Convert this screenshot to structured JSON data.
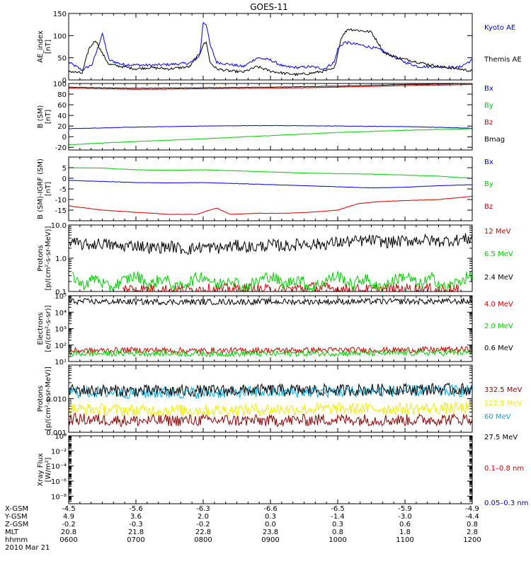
{
  "title": "GOES-11",
  "chart_data": [
    {
      "type": "line",
      "ylabel": [
        "AE_index",
        "[nT]"
      ],
      "ylim": [
        0,
        150
      ],
      "yscale": "linear",
      "yticks": [
        0,
        50,
        100,
        150
      ],
      "ytick_labels": [
        "0",
        "50",
        "100",
        "150"
      ],
      "series": [
        {
          "name": "Kyoto AE",
          "color": "#0000dd",
          "x": [
            6.0,
            6.2,
            6.35,
            6.45,
            6.5,
            6.6,
            6.8,
            7.0,
            7.2,
            7.5,
            7.8,
            7.95,
            8.0,
            8.05,
            8.1,
            8.2,
            8.4,
            8.6,
            8.8,
            9.0,
            9.2,
            9.4,
            9.6,
            9.8,
            9.95,
            10.0,
            10.1,
            10.3,
            10.6,
            10.8,
            11.0,
            11.2,
            11.5,
            11.8,
            12.0
          ],
          "y": [
            40,
            22,
            35,
            80,
            105,
            45,
            35,
            34,
            33,
            35,
            38,
            55,
            130,
            125,
            80,
            40,
            35,
            30,
            50,
            45,
            30,
            28,
            30,
            25,
            40,
            70,
            85,
            80,
            70,
            55,
            40,
            30,
            30,
            28,
            45
          ]
        },
        {
          "name": "Themis AE",
          "color": "#000000",
          "x": [
            6.0,
            6.2,
            6.3,
            6.4,
            6.5,
            6.6,
            6.8,
            7.0,
            7.2,
            7.5,
            7.8,
            7.95,
            8.0,
            8.05,
            8.1,
            8.2,
            8.4,
            8.6,
            8.8,
            9.0,
            9.2,
            9.4,
            9.6,
            9.8,
            9.95,
            10.05,
            10.15,
            10.3,
            10.5,
            10.7,
            10.9,
            11.2,
            11.5,
            11.8,
            12.0
          ],
          "y": [
            20,
            15,
            70,
            90,
            60,
            35,
            30,
            25,
            28,
            25,
            30,
            60,
            80,
            85,
            40,
            25,
            20,
            18,
            30,
            20,
            15,
            12,
            15,
            20,
            25,
            95,
            115,
            112,
            108,
            60,
            50,
            40,
            30,
            25,
            20
          ]
        }
      ]
    },
    {
      "type": "line",
      "ylabel": [
        "B (SM)",
        "[nT]"
      ],
      "ylim": [
        -25,
        100
      ],
      "yscale": "linear",
      "yticks": [
        -20,
        0,
        20,
        40,
        60,
        80,
        100
      ],
      "ytick_labels": [
        "-20",
        "0",
        "20",
        "40",
        "60",
        "80",
        "100"
      ],
      "series": [
        {
          "name": "Bx",
          "color": "#0000dd",
          "x": [
            6.0,
            7.0,
            8.0,
            9.0,
            10.0,
            11.0,
            12.0
          ],
          "y": [
            15,
            18,
            20,
            21,
            20,
            19,
            16
          ]
        },
        {
          "name": "By",
          "color": "#00cc00",
          "x": [
            6.0,
            7.0,
            8.0,
            9.0,
            10.0,
            11.0,
            12.0
          ],
          "y": [
            -15,
            -9,
            -4,
            2,
            8,
            12,
            15
          ]
        },
        {
          "name": "Bz",
          "color": "#cc0000",
          "x": [
            6.0,
            7.0,
            8.0,
            9.0,
            10.0,
            11.0,
            12.0
          ],
          "y": [
            91,
            89,
            90,
            91,
            93,
            96,
            98
          ]
        },
        {
          "name": "Bmag",
          "color": "#000000",
          "x": [
            6.0,
            7.0,
            8.0,
            9.0,
            10.0,
            11.0,
            12.0
          ],
          "y": [
            93,
            91,
            92,
            93,
            95,
            98,
            100
          ]
        }
      ]
    },
    {
      "type": "line",
      "ylabel": [
        "B (SM)-IGRF (SM)",
        "[nT]"
      ],
      "ylim": [
        -20,
        10
      ],
      "yscale": "linear",
      "yticks": [
        -15,
        -10,
        -5,
        0,
        5
      ],
      "ytick_labels": [
        "-15",
        "-10",
        "-5",
        "0",
        "5"
      ],
      "series": [
        {
          "name": "Bx",
          "color": "#0000dd",
          "x": [
            6.0,
            6.5,
            7.0,
            7.5,
            8.0,
            8.5,
            9.0,
            9.5,
            10.0,
            10.5,
            11.0,
            11.5,
            12.0
          ],
          "y": [
            -1,
            -1.5,
            -2,
            -2.2,
            -2,
            -2.5,
            -3,
            -3.5,
            -4,
            -4.5,
            -4.2,
            -3.5,
            -3
          ]
        },
        {
          "name": "By",
          "color": "#00cc00",
          "x": [
            6.0,
            6.5,
            7.0,
            7.5,
            8.0,
            8.5,
            9.0,
            9.5,
            10.0,
            10.5,
            11.0,
            11.5,
            12.0
          ],
          "y": [
            5,
            4.8,
            4,
            3.8,
            4,
            3.5,
            3,
            2.5,
            2.2,
            2,
            1.5,
            1,
            0
          ]
        },
        {
          "name": "Bz",
          "color": "#cc0000",
          "x": [
            6.0,
            6.5,
            7.0,
            7.5,
            7.9,
            8.2,
            8.4,
            8.8,
            9.2,
            9.6,
            10.0,
            10.3,
            10.6,
            11.0,
            11.5,
            12.0
          ],
          "y": [
            -13,
            -15,
            -16,
            -17,
            -17,
            -14,
            -17,
            -16.5,
            -16.5,
            -16,
            -15,
            -12,
            -11,
            -10.5,
            -10,
            -8.5
          ]
        }
      ]
    },
    {
      "type": "line",
      "ylabel": [
        "Protons",
        "[p/(cm²-s-sr-MeV)]"
      ],
      "ylim": [
        0.1,
        10.0
      ],
      "yscale": "log",
      "yticks": [
        0.1,
        1.0,
        10.0
      ],
      "ytick_labels": [
        "0.1",
        "1.0",
        "10.0"
      ],
      "series": [
        {
          "name": "12 MeV",
          "color": "#cc0000",
          "x": [
            6.8,
            7.6,
            8.4,
            9.1,
            9.6,
            10.3,
            11.3,
            11.8
          ],
          "y": [
            0.12,
            0.11,
            0.12,
            0.11,
            0.13,
            0.11,
            0.12,
            0.11
          ]
        },
        {
          "name": "6.5 MeV",
          "color": "#00cc00",
          "x": [
            6.05,
            6.2,
            6.4,
            6.6,
            6.8,
            7.0,
            7.2,
            7.4,
            7.6,
            7.8,
            8.0,
            8.2,
            8.4,
            8.6,
            8.8,
            9.0,
            9.2,
            9.4,
            9.6,
            9.8,
            10.0,
            10.2,
            10.4,
            10.6,
            10.8,
            11.0,
            11.2,
            11.4,
            11.6,
            11.8,
            12.0
          ],
          "y": [
            0.3,
            0.15,
            0.25,
            0.12,
            0.2,
            0.3,
            0.15,
            0.25,
            0.12,
            0.2,
            0.3,
            0.15,
            0.25,
            0.12,
            0.2,
            0.3,
            0.15,
            0.25,
            0.12,
            0.2,
            0.3,
            0.15,
            0.25,
            0.12,
            0.2,
            0.3,
            0.15,
            0.25,
            0.12,
            0.2,
            0.3
          ]
        },
        {
          "name": "2.4 MeV",
          "color": "#000000",
          "x": [
            6.0,
            6.25,
            6.5,
            6.75,
            7.0,
            7.25,
            7.5,
            7.75,
            8.0,
            8.25,
            8.5,
            8.75,
            9.0,
            9.25,
            9.5,
            9.75,
            10.0,
            10.25,
            10.5,
            10.75,
            11.0,
            11.25,
            11.5,
            11.75,
            12.0
          ],
          "y": [
            3.0,
            2.5,
            2.8,
            2.2,
            2.5,
            2.0,
            2.3,
            1.8,
            2.2,
            2.0,
            2.4,
            2.1,
            2.5,
            2.3,
            2.8,
            2.6,
            3.0,
            3.2,
            3.5,
            3.0,
            3.3,
            3.6,
            3.2,
            3.5,
            4.0
          ]
        }
      ]
    },
    {
      "type": "line",
      "ylabel": [
        "Electrons",
        "[e/(cm²-s-sr)]"
      ],
      "ylim": [
        10,
        100000
      ],
      "yscale": "log",
      "yticks": [
        10,
        100,
        1000,
        10000,
        100000
      ],
      "ytick_labels": [
        "10¹",
        "10²",
        "10³",
        "10⁴",
        "10⁵"
      ],
      "series": [
        {
          "name": "4.0 MeV",
          "color": "#cc0000",
          "x": [
            6.0,
            7.0,
            8.0,
            9.0,
            10.0,
            11.0,
            12.0
          ],
          "y": [
            45,
            50,
            45,
            48,
            50,
            50,
            55
          ]
        },
        {
          "name": "2.0 MeV",
          "color": "#00cc00",
          "x": [
            6.0,
            7.0,
            8.0,
            9.0,
            10.0,
            11.0,
            12.0
          ],
          "y": [
            30,
            32,
            30,
            30,
            32,
            33,
            35
          ]
        },
        {
          "name": "0.6 MeV",
          "color": "#000000",
          "x": [
            6.0,
            7.0,
            8.0,
            9.0,
            10.0,
            11.0,
            12.0
          ],
          "y": [
            45000,
            43000,
            42000,
            43000,
            44000,
            45000,
            45000
          ]
        }
      ]
    },
    {
      "type": "line",
      "ylabel": [
        "Protons",
        "[p/(cm²-s-sr-MeV)]"
      ],
      "ylim": [
        0.001,
        0.1
      ],
      "yscale": "log",
      "yticks": [
        0.001,
        0.01
      ],
      "ytick_labels": [
        "0.001",
        "0.010"
      ],
      "series": [
        {
          "name": "332.5 MeV",
          "color": "#880000",
          "x": [
            6.0,
            7.0,
            8.0,
            9.0,
            10.0,
            11.0,
            12.0
          ],
          "y": [
            0.0025,
            0.0022,
            0.0023,
            0.0022,
            0.0024,
            0.0023,
            0.0025
          ]
        },
        {
          "name": "122.5 MeV",
          "color": "#eeee00",
          "x": [
            6.0,
            7.0,
            8.0,
            9.0,
            10.0,
            11.0,
            12.0
          ],
          "y": [
            0.005,
            0.0045,
            0.0045,
            0.0048,
            0.005,
            0.005,
            0.0052
          ]
        },
        {
          "name": "60 MeV",
          "color": "#00aadd",
          "x": [
            6.0,
            7.0,
            8.0,
            9.0,
            10.0,
            11.0,
            12.0
          ],
          "y": [
            0.016,
            0.015,
            0.015,
            0.016,
            0.016,
            0.017,
            0.017
          ]
        },
        {
          "name": "27.5 MeV",
          "color": "#000000",
          "x": [
            6.0,
            7.0,
            8.0,
            9.0,
            10.0,
            11.0,
            12.0
          ],
          "y": [
            0.018,
            0.017,
            0.017,
            0.018,
            0.018,
            0.019,
            0.019
          ]
        }
      ]
    },
    {
      "type": "line",
      "ylabel": [
        "Xray Flux",
        "[W/m²]"
      ],
      "ylim": [
        1e-09,
        1
      ],
      "yscale": "log",
      "yticks": [
        1e-08,
        1e-06,
        0.0001,
        0.01,
        1
      ],
      "ytick_labels": [
        "10⁻⁸",
        "10⁻⁶",
        "10⁻⁴",
        "10⁻²",
        "10⁰"
      ],
      "series": [
        {
          "name": "0.1–0.8 nm",
          "color": "#cc0000",
          "x": [],
          "y": []
        },
        {
          "name": "0.05–0.3 nm",
          "color": "#0000dd",
          "x": [],
          "y": []
        }
      ]
    }
  ],
  "xaxis": {
    "tick_positions": [
      6.0,
      7.0,
      8.0,
      9.0,
      10.0,
      11.0,
      12.0
    ],
    "rows": [
      {
        "label": "X-GSM",
        "values": [
          "-4.5",
          "-5.6",
          "-6.3",
          "-6.6",
          "-6.5",
          "-5.9",
          "-4.9"
        ]
      },
      {
        "label": "Y-GSM",
        "values": [
          "4.9",
          "3.6",
          "2.0",
          "0.3",
          "-1.4",
          "-3.0",
          "-4.4"
        ]
      },
      {
        "label": "Z-GSM",
        "values": [
          "-0.2",
          "-0.3",
          "-0.2",
          "0.0",
          "0.3",
          "0.6",
          "0.8"
        ]
      },
      {
        "label": "MLT",
        "values": [
          "20.8",
          "21.8",
          "22.8",
          "23.8",
          "0.8",
          "1.8",
          "2.8"
        ]
      },
      {
        "label": "hhmm",
        "values": [
          "0600",
          "0700",
          "0800",
          "0900",
          "1000",
          "1100",
          "1200"
        ]
      }
    ],
    "date": "2010 Mar 21"
  }
}
